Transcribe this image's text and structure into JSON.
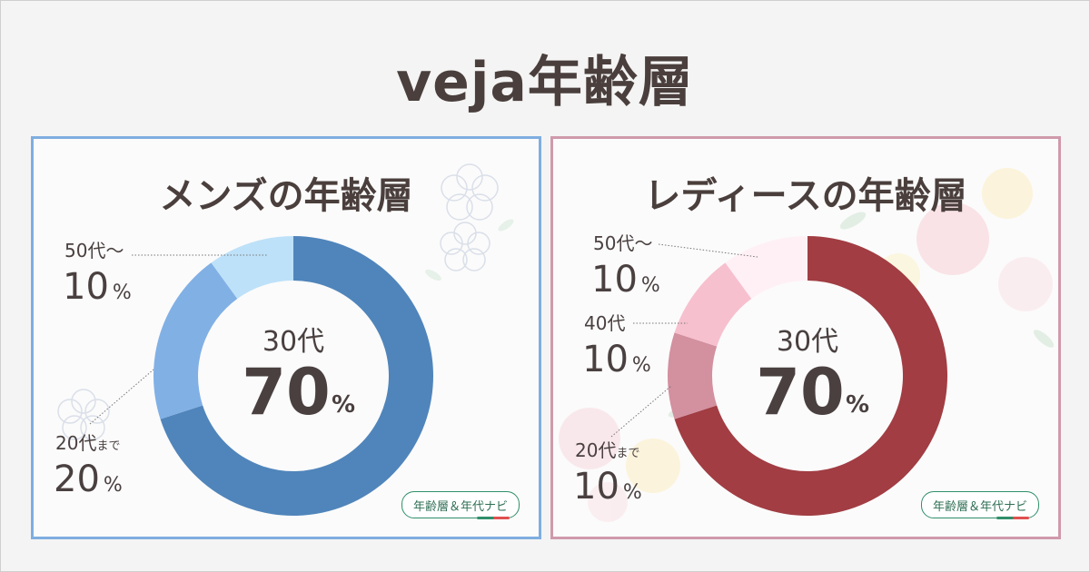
{
  "page_title": "veja年齢層",
  "badge_text": "年齢層＆年代ナビ",
  "colors": {
    "men_border": "#7faee0",
    "women_border": "#cf9aab"
  },
  "chart_data": [
    {
      "type": "donut",
      "title": "メンズの年齢層",
      "slices": [
        {
          "category": "30代",
          "value": 70,
          "color": "#5085bb"
        },
        {
          "category": "20代まで",
          "value": 20,
          "color": "#81b0e5"
        },
        {
          "category": "50代～",
          "value": 10,
          "color": "#bde1f8"
        }
      ],
      "center_label": {
        "category": "30代",
        "value": "70",
        "unit": "%"
      },
      "callouts": [
        {
          "category": "50代～",
          "suffix": "",
          "value": "10",
          "unit": "%"
        },
        {
          "category": "20代",
          "suffix": "まで",
          "value": "20",
          "unit": "%"
        }
      ]
    },
    {
      "type": "donut",
      "title": "レディースの年齢層",
      "slices": [
        {
          "category": "30代",
          "value": 70,
          "color": "#a13d43"
        },
        {
          "category": "20代まで",
          "value": 10,
          "color": "#d3909f"
        },
        {
          "category": "40代",
          "value": 10,
          "color": "#f7c0ce"
        },
        {
          "category": "50代～",
          "value": 10,
          "color": "#fff0f6"
        }
      ],
      "center_label": {
        "category": "30代",
        "value": "70",
        "unit": "%"
      },
      "callouts": [
        {
          "category": "50代～",
          "suffix": "",
          "value": "10",
          "unit": "%"
        },
        {
          "category": "40代",
          "suffix": "",
          "value": "10",
          "unit": "%"
        },
        {
          "category": "20代",
          "suffix": "まで",
          "value": "10",
          "unit": "%"
        }
      ]
    }
  ]
}
